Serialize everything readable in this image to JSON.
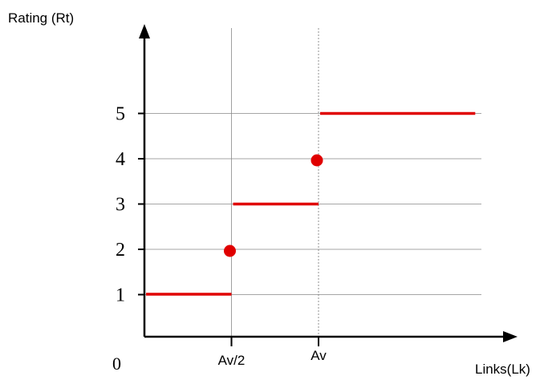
{
  "chart_data": {
    "type": "line",
    "ylabel": "Rating (Rt)",
    "xlabel": "Links(Lk)",
    "origin_label": "0",
    "x_ticks": [
      {
        "label": "Av/2",
        "x": 0.5
      },
      {
        "label": "Av",
        "x": 1
      }
    ],
    "y_ticks": [
      1,
      2,
      3,
      4,
      5
    ],
    "ylim": [
      0,
      5
    ],
    "grid": true,
    "segments": [
      {
        "x": [
          0,
          0.5
        ],
        "y": 1
      },
      {
        "x": [
          0.5,
          1
        ],
        "y": 3
      },
      {
        "x": [
          1,
          1.9
        ],
        "y": 5
      }
    ],
    "points": [
      {
        "x": 0.5,
        "y": 2
      },
      {
        "x": 1,
        "y": 4
      }
    ],
    "colors": {
      "series": "#e00000",
      "grid": "#888888",
      "axis": "#000000"
    }
  }
}
